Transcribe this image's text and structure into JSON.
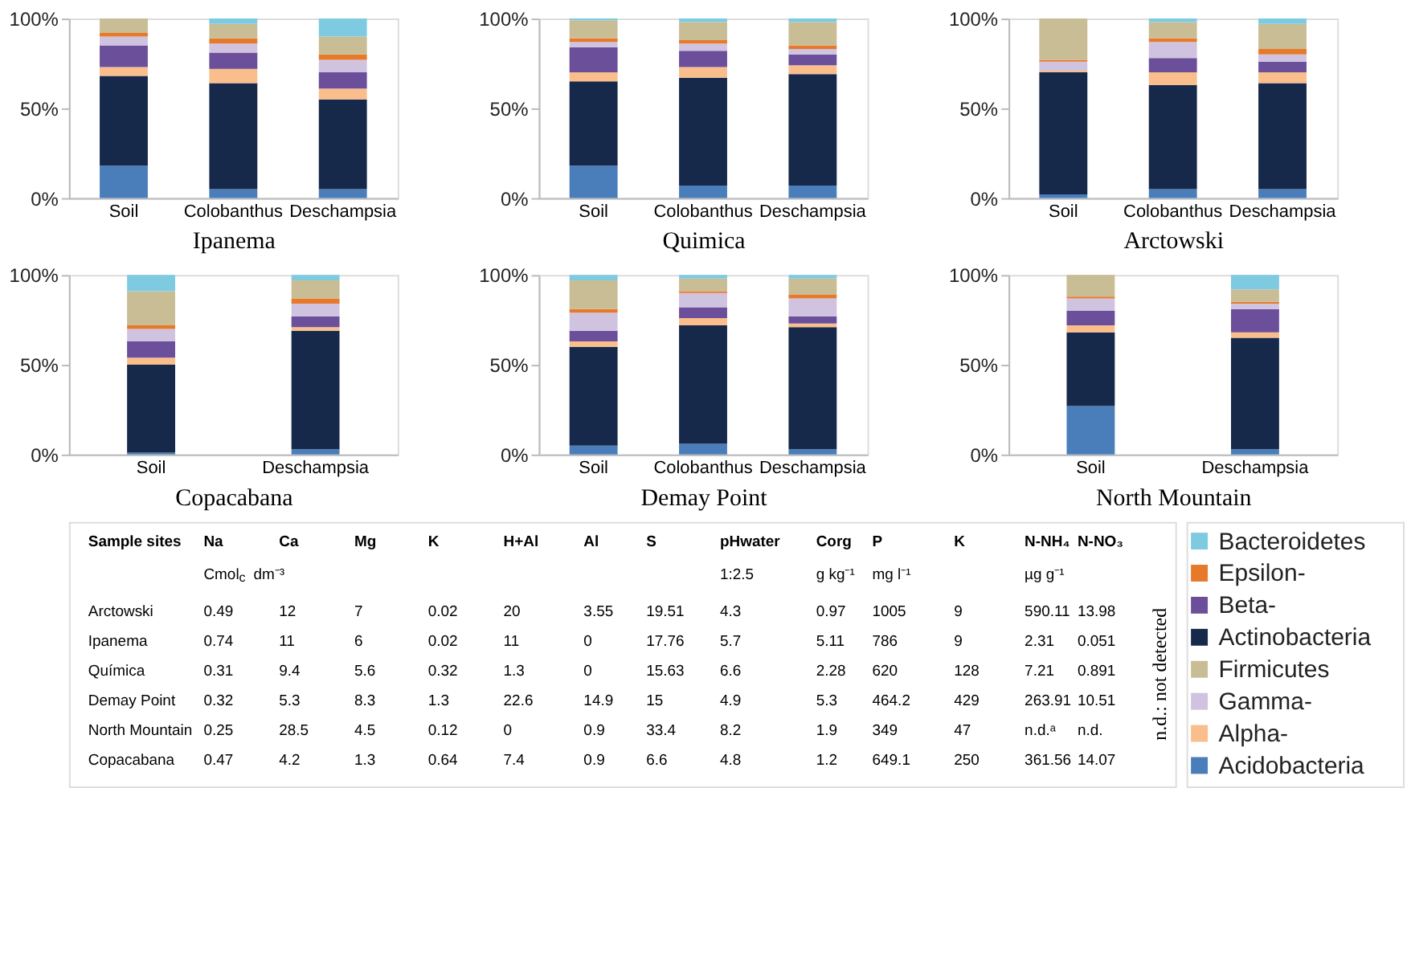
{
  "chart_data": [
    {
      "type": "bar",
      "stacked": true,
      "xlabel": "Ipanema",
      "categories": [
        "Soil",
        "Colobanthus",
        "Deschampsia"
      ],
      "ylim": [
        0,
        100
      ],
      "yticks": [
        {
          "value": 0,
          "label": "0%"
        },
        {
          "value": 50,
          "label": "50%"
        },
        {
          "value": 100,
          "label": "100%"
        }
      ],
      "legend": "bottom right",
      "series": [
        {
          "name": "Acidobacteria",
          "color": "#4a7ebb",
          "values": [
            18,
            5,
            5
          ]
        },
        {
          "name": "Actinobacteria",
          "color": "#17294a",
          "values": [
            50,
            59,
            50
          ]
        },
        {
          "name": "Alpha-",
          "color": "#f9be8c",
          "values": [
            5,
            8,
            6
          ]
        },
        {
          "name": "Beta-",
          "color": "#6b4f9a",
          "values": [
            12,
            9,
            9
          ]
        },
        {
          "name": "Gamma-",
          "color": "#cfc3e0",
          "values": [
            5,
            5,
            7
          ]
        },
        {
          "name": "Epsilon-",
          "color": "#e7792b",
          "values": [
            2,
            3,
            3
          ]
        },
        {
          "name": "Firmicutes",
          "color": "#c8bd95",
          "values": [
            8,
            8,
            10
          ]
        },
        {
          "name": "Bacteroidetes",
          "color": "#7ecbe1",
          "values": [
            0,
            3,
            10
          ]
        }
      ]
    },
    {
      "type": "bar",
      "stacked": true,
      "xlabel": "Quimica",
      "categories": [
        "Soil",
        "Colobanthus",
        "Deschampsia"
      ],
      "ylim": [
        0,
        100
      ],
      "yticks": [
        {
          "value": 0,
          "label": "0%"
        },
        {
          "value": 50,
          "label": "50%"
        },
        {
          "value": 100,
          "label": "100%"
        }
      ],
      "series": [
        {
          "name": "Acidobacteria",
          "color": "#4a7ebb",
          "values": [
            18,
            7,
            7
          ]
        },
        {
          "name": "Actinobacteria",
          "color": "#17294a",
          "values": [
            47,
            60,
            62
          ]
        },
        {
          "name": "Alpha-",
          "color": "#f9be8c",
          "values": [
            5,
            6,
            5
          ]
        },
        {
          "name": "Beta-",
          "color": "#6b4f9a",
          "values": [
            14,
            9,
            6
          ]
        },
        {
          "name": "Gamma-",
          "color": "#cfc3e0",
          "values": [
            3,
            4,
            3
          ]
        },
        {
          "name": "Epsilon-",
          "color": "#e7792b",
          "values": [
            2,
            2,
            2
          ]
        },
        {
          "name": "Firmicutes",
          "color": "#c8bd95",
          "values": [
            10,
            10,
            13
          ]
        },
        {
          "name": "Bacteroidetes",
          "color": "#7ecbe1",
          "values": [
            1,
            2,
            2
          ]
        }
      ]
    },
    {
      "type": "bar",
      "stacked": true,
      "xlabel": "Arctowski",
      "categories": [
        "Soil",
        "Colobanthus",
        "Deschampsia"
      ],
      "ylim": [
        0,
        100
      ],
      "yticks": [
        {
          "value": 0,
          "label": "0%"
        },
        {
          "value": 50,
          "label": "50%"
        },
        {
          "value": 100,
          "label": "100%"
        }
      ],
      "series": [
        {
          "name": "Acidobacteria",
          "color": "#4a7ebb",
          "values": [
            2,
            5,
            5
          ]
        },
        {
          "name": "Actinobacteria",
          "color": "#17294a",
          "values": [
            68,
            58,
            59
          ]
        },
        {
          "name": "Alpha-",
          "color": "#f9be8c",
          "values": [
            1,
            7,
            6
          ]
        },
        {
          "name": "Beta-",
          "color": "#6b4f9a",
          "values": [
            0,
            8,
            6
          ]
        },
        {
          "name": "Gamma-",
          "color": "#cfc3e0",
          "values": [
            5,
            9,
            4
          ]
        },
        {
          "name": "Epsilon-",
          "color": "#e7792b",
          "values": [
            1,
            2,
            3
          ]
        },
        {
          "name": "Firmicutes",
          "color": "#c8bd95",
          "values": [
            23,
            9,
            14
          ]
        },
        {
          "name": "Bacteroidetes",
          "color": "#7ecbe1",
          "values": [
            0,
            2,
            3
          ]
        }
      ]
    },
    {
      "type": "bar",
      "stacked": true,
      "xlabel": "Copacabana",
      "categories": [
        "Soil",
        "Deschampsia"
      ],
      "ylim": [
        0,
        100
      ],
      "yticks": [
        {
          "value": 0,
          "label": "0%"
        },
        {
          "value": 50,
          "label": "50%"
        },
        {
          "value": 100,
          "label": "100%"
        }
      ],
      "series": [
        {
          "name": "Acidobacteria",
          "color": "#4a7ebb",
          "values": [
            1,
            3
          ]
        },
        {
          "name": "Actinobacteria",
          "color": "#17294a",
          "values": [
            49,
            66
          ]
        },
        {
          "name": "Alpha-",
          "color": "#f9be8c",
          "values": [
            4,
            2
          ]
        },
        {
          "name": "Beta-",
          "color": "#6b4f9a",
          "values": [
            9,
            6
          ]
        },
        {
          "name": "Gamma-",
          "color": "#cfc3e0",
          "values": [
            7,
            7
          ]
        },
        {
          "name": "Epsilon-",
          "color": "#e7792b",
          "values": [
            2,
            3
          ]
        },
        {
          "name": "Firmicutes",
          "color": "#c8bd95",
          "values": [
            19,
            10
          ]
        },
        {
          "name": "Bacteroidetes",
          "color": "#7ecbe1",
          "values": [
            9,
            3
          ]
        }
      ]
    },
    {
      "type": "bar",
      "stacked": true,
      "xlabel": "Demay Point",
      "categories": [
        "Soil",
        "Colobanthus",
        "Deschampsia"
      ],
      "ylim": [
        0,
        100
      ],
      "yticks": [
        {
          "value": 0,
          "label": "0%"
        },
        {
          "value": 50,
          "label": "50%"
        },
        {
          "value": 100,
          "label": "100%"
        }
      ],
      "series": [
        {
          "name": "Acidobacteria",
          "color": "#4a7ebb",
          "values": [
            5,
            6,
            3
          ]
        },
        {
          "name": "Actinobacteria",
          "color": "#17294a",
          "values": [
            55,
            66,
            68
          ]
        },
        {
          "name": "Alpha-",
          "color": "#f9be8c",
          "values": [
            3,
            4,
            2
          ]
        },
        {
          "name": "Beta-",
          "color": "#6b4f9a",
          "values": [
            6,
            6,
            4
          ]
        },
        {
          "name": "Gamma-",
          "color": "#cfc3e0",
          "values": [
            10,
            8,
            10
          ]
        },
        {
          "name": "Epsilon-",
          "color": "#e7792b",
          "values": [
            2,
            1,
            2
          ]
        },
        {
          "name": "Firmicutes",
          "color": "#c8bd95",
          "values": [
            16,
            7,
            9
          ]
        },
        {
          "name": "Bacteroidetes",
          "color": "#7ecbe1",
          "values": [
            3,
            2,
            2
          ]
        }
      ]
    },
    {
      "type": "bar",
      "stacked": true,
      "xlabel": "North Mountain",
      "categories": [
        "Soil",
        "Deschampsia"
      ],
      "ylim": [
        0,
        100
      ],
      "yticks": [
        {
          "value": 0,
          "label": "0%"
        },
        {
          "value": 50,
          "label": "50%"
        },
        {
          "value": 100,
          "label": "100%"
        }
      ],
      "series": [
        {
          "name": "Acidobacteria",
          "color": "#4a7ebb",
          "values": [
            27,
            3
          ]
        },
        {
          "name": "Actinobacteria",
          "color": "#17294a",
          "values": [
            41,
            62
          ]
        },
        {
          "name": "Alpha-",
          "color": "#f9be8c",
          "values": [
            4,
            3
          ]
        },
        {
          "name": "Beta-",
          "color": "#6b4f9a",
          "values": [
            8,
            13
          ]
        },
        {
          "name": "Gamma-",
          "color": "#cfc3e0",
          "values": [
            7,
            3
          ]
        },
        {
          "name": "Epsilon-",
          "color": "#e7792b",
          "values": [
            1,
            1
          ]
        },
        {
          "name": "Firmicutes",
          "color": "#c8bd95",
          "values": [
            12,
            7
          ]
        },
        {
          "name": "Bacteroidetes",
          "color": "#7ecbe1",
          "values": [
            0,
            8
          ]
        }
      ]
    },
    {
      "type": "other",
      "annotations": [
        "Sample sites",
        "Na",
        "Ca",
        "Mg",
        "K",
        "H+Al",
        "Al",
        "S",
        "pHwater",
        "Corg",
        "P",
        "K",
        "N-NH₄",
        "N-NO₃",
        "Cmol$_{c}$ dm⁻³",
        "1:2.5",
        "g kg⁻¹",
        "mg l⁻¹",
        "µg g⁻¹",
        "Arctowski",
        "0.49",
        "12",
        "7",
        "0.02",
        "20",
        "3.55",
        "19.51",
        "4.3",
        "0.97",
        "1005",
        "9",
        "590.11",
        "13.98",
        "Ipanema",
        "0.74",
        "11",
        "6",
        "0.02",
        "11",
        "0",
        "17.76",
        "5.7",
        "5.11",
        "786",
        "9",
        "2.31",
        "0.051",
        "Química",
        "0.31",
        "9.4",
        "5.6",
        "0.32",
        "1.3",
        "0",
        "15.63",
        "6.6",
        "2.28",
        "620",
        "128",
        "7.21",
        "0.891",
        "Demay Point",
        "0.32",
        "5.3",
        "8.3",
        "1.3",
        "22.6",
        "14.9",
        "15",
        "4.9",
        "5.3",
        "464.2",
        "429",
        "263.91",
        "10.51",
        "North Mountain",
        "0.25",
        "28.5",
        "4.5",
        "0.12",
        "0",
        "0.9",
        "33.4",
        "8.2",
        "1.9",
        "349",
        "47",
        "n.d.ᵃ",
        "n.d.",
        "Copacabana",
        "0.47",
        "4.2",
        "1.3",
        "0.64",
        "7.4",
        "0.9",
        "6.6",
        "4.8",
        "1.2",
        "649.1",
        "250",
        "361.56",
        "14.07",
        "n.d.: not detected"
      ]
    }
  ]
}
